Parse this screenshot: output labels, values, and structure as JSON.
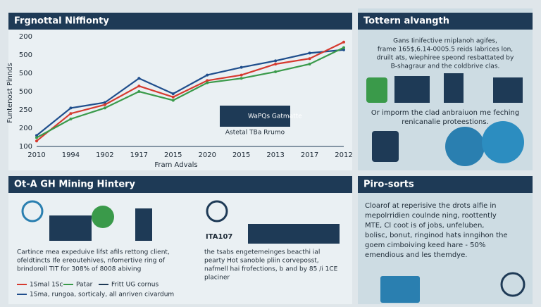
{
  "chart_data": {
    "type": "line",
    "title": "Frgnottal Niffionty",
    "y_axis_title": "Funtenost Pinnds",
    "x_axis_title": "Fram Advals",
    "y_axis_labels": [
      "200",
      "500",
      "500",
      "500",
      "250",
      "200",
      "100"
    ],
    "categories": [
      "2010",
      "1994",
      "1902",
      "1917",
      "2015",
      "2020",
      "2015",
      "2013",
      "2017",
      "2012"
    ],
    "series": [
      {
        "color": "#1f4e8c",
        "values": [
          10,
          35,
          40,
          62,
          48,
          65,
          72,
          78,
          85,
          88
        ]
      },
      {
        "color": "#d63a2f",
        "values": [
          5,
          30,
          38,
          55,
          45,
          60,
          65,
          75,
          80,
          95
        ]
      },
      {
        "color": "#3a9a4a",
        "values": [
          8,
          25,
          35,
          50,
          42,
          58,
          62,
          68,
          75,
          90
        ]
      }
    ],
    "inset_label": "WaPQs Gatmatte",
    "inset_caption": "Astetal TBa Rrumo"
  },
  "panels": {
    "top_right": {
      "title": "Tottern alvangth",
      "body": [
        "Gans Iinifective rniplanoh agifes,",
        "frame 165$,6.14-0005.5 reids labrices lon,",
        "druilt ats, wiephiree speond resbattated by",
        "B-shagraur and the coldbrive clas."
      ],
      "caption": [
        "Or imporm the clad anbraiuon me feching",
        "renicanalie proteestions."
      ]
    },
    "bottom_left": {
      "title": "Ot-A GH Mining Hintery",
      "text_left": [
        "Cartince mea expeduive lifst afils rettong client,",
        "ofeldtincts Ife ereoutehives, nfomertive ring of",
        "brindoroll TIT for 308% of 8008 abiving"
      ],
      "brand": "ITA107",
      "text_right": [
        "the tsabs engetemeinges beacthi ial",
        "pearty Hot sanoble pliin corveposst,",
        "nafmell hai frofections, b and by 85 /i 1CE",
        "placiner"
      ],
      "legend": [
        "1Smal 1Sc",
        "Patar",
        "Fritt UG cornus",
        "1Sma, rungoa, sorticaly, all anriven civardum"
      ]
    },
    "bottom_right": {
      "title": "Piro-sorts",
      "body": [
        "Cloarof at reperisive the drots alfie in",
        "mepolrridien coulnde ning, roottently",
        "MTE, Cl coot is of jobs, unfeluben,",
        "bolisc, bonut, ringinod hats inngihon the",
        "goem cimboiving keed hare - 50%",
        "emendious and les themdye."
      ]
    }
  }
}
